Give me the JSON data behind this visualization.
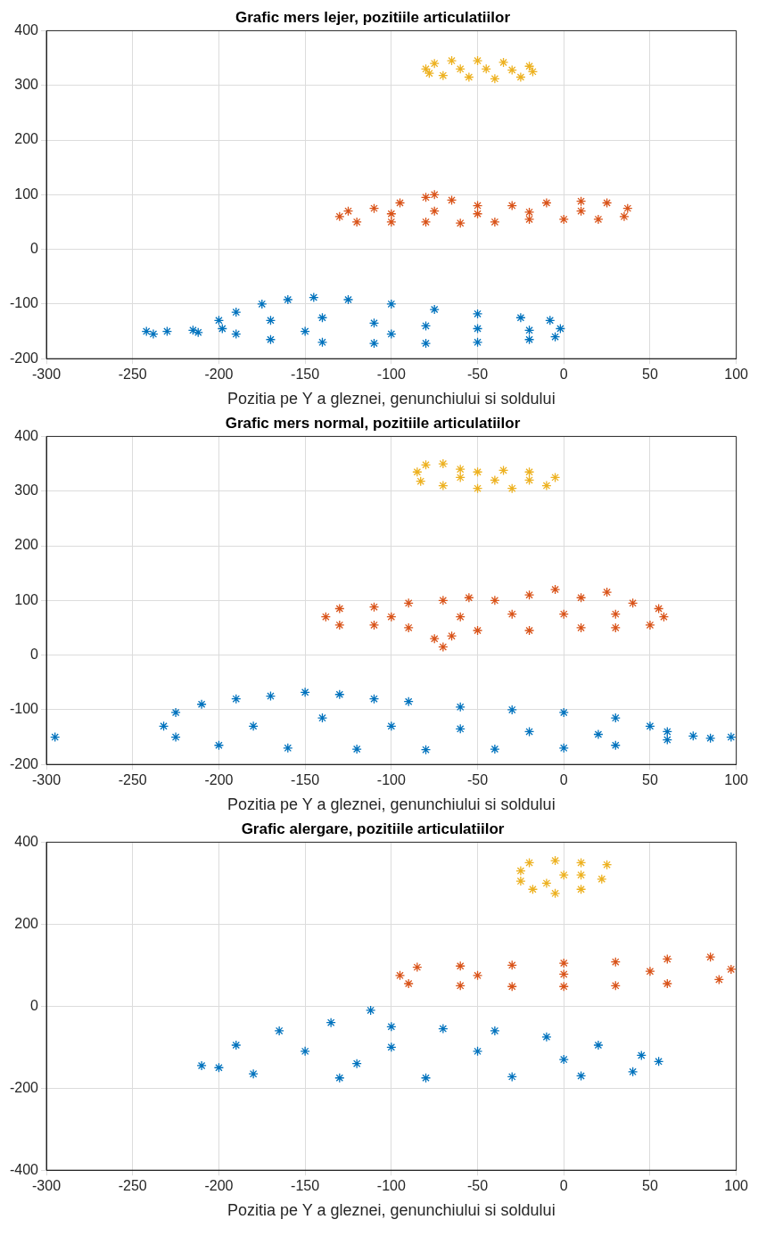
{
  "chart_data": [
    {
      "type": "scatter",
      "title": "Grafic mers lejer, pozitiile articulatiilor",
      "xlabel": "Pozitia pe Y a gleznei, genunchiului si soldului",
      "xlim": [
        -300,
        100
      ],
      "xticks": [
        -300,
        -250,
        -200,
        -150,
        -100,
        -50,
        0,
        50,
        100
      ],
      "ylim": [
        -200,
        400
      ],
      "yticks": [
        -200,
        -100,
        0,
        100,
        200,
        300,
        400
      ],
      "grid": true,
      "marker": "cross",
      "series": [
        {
          "color": "#0072bd",
          "x": [
            -200,
            -190,
            -175,
            -160,
            -145,
            -125,
            -100,
            -75,
            -50,
            -25,
            -8,
            -2,
            -5,
            -20,
            -50,
            -80,
            -110,
            -140,
            -170,
            -190,
            -198,
            -170,
            -140,
            -110,
            -80,
            -50,
            -20,
            -150,
            -100,
            -242,
            -238,
            -230,
            -215,
            -212
          ],
          "values": [
            -130,
            -115,
            -100,
            -92,
            -88,
            -92,
            -100,
            -110,
            -118,
            -125,
            -130,
            -145,
            -160,
            -165,
            -170,
            -172,
            -172,
            -170,
            -165,
            -155,
            -145,
            -130,
            -125,
            -135,
            -140,
            -145,
            -148,
            -150,
            -155,
            -150,
            -155,
            -150,
            -148,
            -152
          ]
        },
        {
          "color": "#d95319",
          "x": [
            -130,
            -125,
            -110,
            -95,
            -80,
            -75,
            -65,
            -50,
            -30,
            -10,
            10,
            25,
            37,
            35,
            20,
            0,
            -20,
            -40,
            -60,
            -80,
            -100,
            -120,
            -100,
            -75,
            -50,
            -20,
            10
          ],
          "values": [
            60,
            70,
            75,
            85,
            95,
            100,
            90,
            80,
            80,
            85,
            88,
            85,
            75,
            60,
            55,
            55,
            55,
            50,
            48,
            50,
            50,
            50,
            65,
            70,
            65,
            68,
            70
          ]
        },
        {
          "color": "#edb120",
          "x": [
            -80,
            -75,
            -65,
            -50,
            -35,
            -20,
            -18,
            -25,
            -40,
            -55,
            -70,
            -78,
            -60,
            -45,
            -30
          ],
          "values": [
            330,
            340,
            345,
            345,
            342,
            335,
            325,
            315,
            312,
            315,
            318,
            322,
            330,
            330,
            328
          ]
        }
      ]
    },
    {
      "type": "scatter",
      "title": "Grafic mers normal, pozitiile articulatiilor",
      "xlabel": "Pozitia pe Y a gleznei, genunchiului si soldului",
      "xlim": [
        -300,
        100
      ],
      "xticks": [
        -300,
        -250,
        -200,
        -150,
        -100,
        -50,
        0,
        50,
        100
      ],
      "ylim": [
        -200,
        400
      ],
      "yticks": [
        -200,
        -100,
        0,
        100,
        200,
        300,
        400
      ],
      "grid": true,
      "marker": "cross",
      "series": [
        {
          "color": "#0072bd",
          "x": [
            -232,
            -225,
            -210,
            -190,
            -170,
            -150,
            -130,
            -110,
            -90,
            -60,
            -30,
            0,
            30,
            50,
            60,
            75,
            85,
            97,
            60,
            30,
            0,
            -40,
            -80,
            -120,
            -160,
            -200,
            -225,
            -180,
            -140,
            -100,
            -60,
            -20,
            20,
            -295
          ],
          "values": [
            -130,
            -105,
            -90,
            -80,
            -75,
            -68,
            -72,
            -80,
            -85,
            -95,
            -100,
            -105,
            -115,
            -130,
            -140,
            -148,
            -152,
            -150,
            -155,
            -165,
            -170,
            -172,
            -173,
            -172,
            -170,
            -165,
            -150,
            -130,
            -115,
            -130,
            -135,
            -140,
            -145,
            -150
          ]
        },
        {
          "color": "#d95319",
          "x": [
            -138,
            -130,
            -110,
            -90,
            -70,
            -55,
            -40,
            -20,
            -5,
            10,
            25,
            40,
            55,
            58,
            50,
            30,
            10,
            -20,
            -50,
            -65,
            -70,
            -75,
            -90,
            -110,
            -130,
            -100,
            -60,
            -30,
            0,
            30
          ],
          "values": [
            70,
            85,
            88,
            95,
            100,
            105,
            100,
            110,
            120,
            105,
            115,
            95,
            85,
            70,
            55,
            50,
            50,
            45,
            45,
            35,
            15,
            30,
            50,
            55,
            55,
            70,
            70,
            75,
            75,
            75
          ]
        },
        {
          "color": "#edb120",
          "x": [
            -85,
            -80,
            -70,
            -60,
            -50,
            -35,
            -20,
            -5,
            -10,
            -30,
            -50,
            -70,
            -83,
            -60,
            -40,
            -20
          ],
          "values": [
            335,
            348,
            350,
            340,
            335,
            338,
            335,
            325,
            310,
            305,
            305,
            310,
            318,
            325,
            320,
            320
          ]
        }
      ]
    },
    {
      "type": "scatter",
      "title": "Grafic alergare, pozitiile articulatiilor",
      "xlabel": "Pozitia pe Y a gleznei, genunchiului si soldului",
      "xlim": [
        -300,
        100
      ],
      "xticks": [
        -300,
        -250,
        -200,
        -150,
        -100,
        -50,
        0,
        50,
        100
      ],
      "ylim": [
        -400,
        400
      ],
      "yticks": [
        -400,
        -200,
        0,
        200,
        400
      ],
      "grid": true,
      "marker": "cross",
      "series": [
        {
          "color": "#0072bd",
          "x": [
            -210,
            -200,
            -190,
            -165,
            -135,
            -112,
            -100,
            -70,
            -40,
            -10,
            20,
            45,
            55,
            40,
            10,
            -30,
            -80,
            -130,
            -180,
            -150,
            -100,
            -50,
            0,
            -120
          ],
          "values": [
            -145,
            -150,
            -95,
            -60,
            -40,
            -10,
            -50,
            -55,
            -60,
            -75,
            -95,
            -120,
            -135,
            -160,
            -170,
            -172,
            -175,
            -175,
            -165,
            -110,
            -100,
            -110,
            -130,
            -140
          ]
        },
        {
          "color": "#d95319",
          "x": [
            -95,
            -85,
            -60,
            -30,
            0,
            30,
            60,
            85,
            97,
            90,
            60,
            30,
            0,
            -30,
            -60,
            -90,
            -50,
            0,
            50
          ],
          "values": [
            75,
            95,
            98,
            100,
            105,
            108,
            115,
            120,
            90,
            65,
            55,
            50,
            48,
            48,
            50,
            55,
            75,
            78,
            85
          ]
        },
        {
          "color": "#edb120",
          "x": [
            -25,
            -20,
            -5,
            10,
            25,
            22,
            10,
            -5,
            -18,
            -25,
            0,
            -10,
            10
          ],
          "values": [
            330,
            350,
            355,
            350,
            345,
            310,
            285,
            275,
            285,
            305,
            320,
            300,
            320
          ]
        }
      ]
    }
  ]
}
